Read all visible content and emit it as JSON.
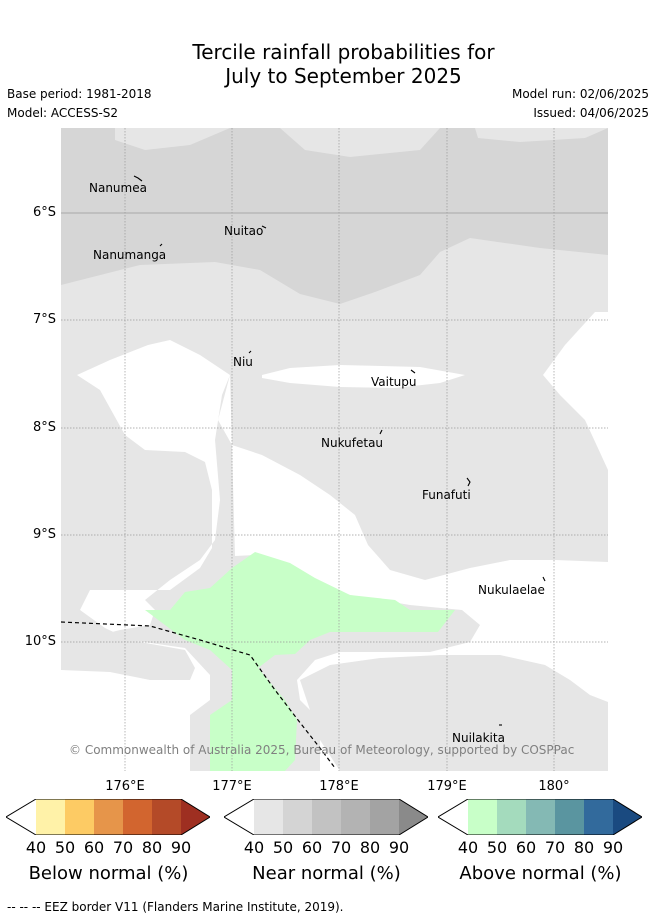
{
  "title_line1": "Tercile rainfall probabilities for",
  "title_line2": "July to September 2025",
  "base_period": "Base period: 1981-2018",
  "model": "Model: ACCESS-S2",
  "model_run": "Model run: 02/06/2025",
  "issued": "Issued: 04/06/2025",
  "axes": {
    "lat_labels": [
      "6°S",
      "7°S",
      "8°S",
      "9°S",
      "10°S"
    ],
    "lon_labels": [
      "176°E",
      "177°E",
      "178°E",
      "179°E",
      "180°"
    ]
  },
  "places": [
    {
      "name": "Nanumea"
    },
    {
      "name": "Nuitao"
    },
    {
      "name": "Nanumanga"
    },
    {
      "name": "Niu"
    },
    {
      "name": "Vaitupu"
    },
    {
      "name": "Nukufetau"
    },
    {
      "name": "Funafuti"
    },
    {
      "name": "Nukulaelae"
    },
    {
      "name": "Nuilakita"
    }
  ],
  "copyright": "© Commonwealth of Australia 2025, Bureau of Meteorology, supported by COSPPac",
  "colorbars": [
    {
      "label": "Below normal (%)",
      "ticks": [
        "40",
        "50",
        "60",
        "70",
        "80",
        "90"
      ],
      "colors": [
        "#ffffff",
        "#fff2a8",
        "#fdcb64",
        "#e6954a",
        "#d2652f",
        "#b44a28",
        "#9e2f21"
      ]
    },
    {
      "label": "Near normal (%)",
      "ticks": [
        "40",
        "50",
        "60",
        "70",
        "80",
        "90"
      ],
      "colors": [
        "#ffffff",
        "#e6e6e6",
        "#d4d4d4",
        "#c2c2c2",
        "#b3b3b3",
        "#a3a3a3",
        "#8a8a8a"
      ]
    },
    {
      "label": "Above normal (%)",
      "ticks": [
        "40",
        "50",
        "60",
        "70",
        "80",
        "90"
      ],
      "colors": [
        "#ffffff",
        "#c8ffc8",
        "#a4dbbd",
        "#84b9b4",
        "#5a95a0",
        "#326a9c",
        "#1a4a80"
      ]
    }
  ],
  "map_colors": {
    "light_grey": "#e6e6e6",
    "mid_grey": "#d6d6d6",
    "green": "#c8ffc8",
    "white": "#ffffff"
  },
  "footer": "-- -- -- EEZ border V11 (Flanders Marine Institute, 2019)."
}
